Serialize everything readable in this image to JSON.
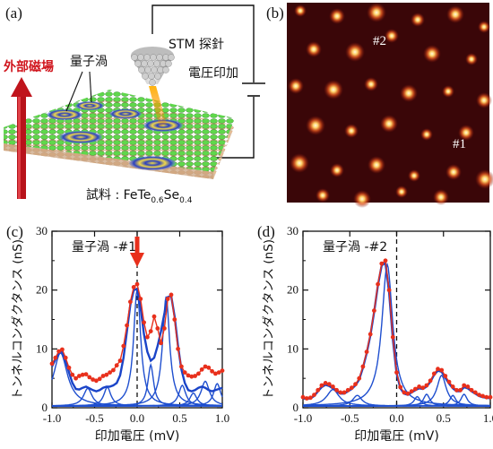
{
  "panels": {
    "a": {
      "label": "(a)",
      "field_label": "外部磁場",
      "vortex_label": "量子渦",
      "tip_label": "STM 探針",
      "voltage_label": "電圧印加",
      "sample_prefix": "試料 : FeTe",
      "sample_sub1": "0.6",
      "sample_mid": "Se",
      "sample_sub2": "0.4"
    },
    "b": {
      "label": "(b)",
      "marker1": "#1",
      "marker2": "#2"
    }
  },
  "colors": {
    "field_arrow": "#c0141c",
    "lattice_top": "#4cc23a",
    "lattice_bottom": "#d8b08a",
    "map_bg": "#3a0608",
    "data_marker": "#e8301c",
    "fit_line": "#1f4fcf"
  },
  "chart_data": [
    {
      "type": "line",
      "panel_label": "(c)",
      "annotation": "量子渦 -#1",
      "xlabel": "印加電圧 (mV)",
      "ylabel": "トンネルコンダクタンス (nS)",
      "xlim": [
        -1.0,
        1.0
      ],
      "ylim": [
        0,
        30
      ],
      "xticks": [
        "-1.0",
        "-0.5",
        "0.0",
        "0.5",
        "1.0"
      ],
      "yticks": [
        "0",
        "10",
        "20",
        "30"
      ],
      "zero_line": 0.0,
      "arrow_at": 0.0,
      "measured": {
        "x": [
          -1.0,
          -0.96,
          -0.92,
          -0.88,
          -0.84,
          -0.8,
          -0.76,
          -0.72,
          -0.68,
          -0.64,
          -0.6,
          -0.56,
          -0.52,
          -0.48,
          -0.44,
          -0.4,
          -0.36,
          -0.32,
          -0.28,
          -0.24,
          -0.2,
          -0.16,
          -0.12,
          -0.08,
          -0.04,
          0.0,
          0.04,
          0.08,
          0.12,
          0.16,
          0.2,
          0.24,
          0.28,
          0.32,
          0.36,
          0.4,
          0.44,
          0.48,
          0.52,
          0.56,
          0.6,
          0.64,
          0.68,
          0.72,
          0.76,
          0.8,
          0.84,
          0.88,
          0.92,
          0.96,
          1.0
        ],
        "y": [
          7.5,
          8.5,
          9.6,
          9.9,
          8.5,
          6.8,
          5.6,
          5.0,
          5.4,
          5.6,
          5.7,
          5.2,
          4.8,
          4.6,
          4.9,
          5.4,
          5.6,
          6.0,
          6.4,
          7.2,
          8.0,
          10.5,
          14.0,
          18.0,
          20.5,
          21.0,
          18.5,
          14.5,
          12.0,
          13.0,
          15.5,
          13.5,
          11.0,
          13.5,
          18.5,
          19.2,
          15.0,
          10.0,
          7.0,
          6.0,
          5.5,
          5.3,
          5.4,
          5.8,
          6.5,
          7.0,
          6.8,
          6.2,
          5.8,
          6.0,
          6.3
        ]
      },
      "fit_total": {
        "x": [
          -1.0,
          -0.96,
          -0.92,
          -0.88,
          -0.84,
          -0.8,
          -0.76,
          -0.72,
          -0.68,
          -0.64,
          -0.6,
          -0.56,
          -0.52,
          -0.48,
          -0.44,
          -0.4,
          -0.36,
          -0.32,
          -0.28,
          -0.24,
          -0.2,
          -0.16,
          -0.12,
          -0.08,
          -0.04,
          0.0,
          0.04,
          0.08,
          0.12,
          0.16,
          0.2,
          0.24,
          0.28,
          0.32,
          0.36,
          0.4,
          0.44,
          0.48,
          0.52,
          0.56,
          0.6,
          0.64,
          0.68,
          0.72,
          0.76,
          0.8,
          0.84,
          0.88,
          0.92,
          0.96,
          1.0
        ],
        "y": [
          7.0,
          8.2,
          9.3,
          9.6,
          8.0,
          6.0,
          4.2,
          3.2,
          3.1,
          3.4,
          3.6,
          3.3,
          3.0,
          2.8,
          3.0,
          3.4,
          3.6,
          3.6,
          3.8,
          4.2,
          5.5,
          8.5,
          13.0,
          17.5,
          20.0,
          20.2,
          17.0,
          12.5,
          9.5,
          8.0,
          8.5,
          10.5,
          13.0,
          16.0,
          18.8,
          19.0,
          15.5,
          10.5,
          6.5,
          4.2,
          3.0,
          2.8,
          3.0,
          3.4,
          3.6,
          3.4,
          3.0,
          2.8,
          3.0,
          3.2,
          3.4
        ]
      },
      "components": [
        {
          "center": -0.9,
          "height": 9.0,
          "width": 0.1
        },
        {
          "center": -0.58,
          "height": 3.0,
          "width": 0.06
        },
        {
          "center": -0.35,
          "height": 3.2,
          "width": 0.05
        },
        {
          "center": 0.0,
          "height": 19.8,
          "width": 0.05
        },
        {
          "center": 0.16,
          "height": 7.0,
          "width": 0.04
        },
        {
          "center": 0.34,
          "height": 18.6,
          "width": 0.05
        },
        {
          "center": 0.53,
          "height": 3.5,
          "width": 0.05
        },
        {
          "center": 0.66,
          "height": 2.2,
          "width": 0.05
        },
        {
          "center": 0.8,
          "height": 4.2,
          "width": 0.06
        },
        {
          "center": 0.94,
          "height": 3.8,
          "width": 0.05
        }
      ]
    },
    {
      "type": "line",
      "panel_label": "(d)",
      "annotation": "量子渦 -#2",
      "xlabel": "印加電圧 (mV)",
      "ylabel": "トンネルコンダクタンス (nS)",
      "xlim": [
        -1.0,
        1.0
      ],
      "ylim": [
        0,
        30
      ],
      "xticks": [
        "-1.0",
        "-0.5",
        "0.0",
        "0.5",
        "1.0"
      ],
      "yticks": [
        "0",
        "10",
        "20",
        "30"
      ],
      "zero_line": 0.0,
      "measured": {
        "x": [
          -1.0,
          -0.96,
          -0.92,
          -0.88,
          -0.84,
          -0.8,
          -0.76,
          -0.72,
          -0.68,
          -0.64,
          -0.6,
          -0.56,
          -0.52,
          -0.48,
          -0.44,
          -0.4,
          -0.36,
          -0.32,
          -0.28,
          -0.24,
          -0.2,
          -0.16,
          -0.12,
          -0.08,
          -0.04,
          0.0,
          0.04,
          0.08,
          0.12,
          0.16,
          0.2,
          0.24,
          0.28,
          0.32,
          0.36,
          0.4,
          0.44,
          0.48,
          0.52,
          0.56,
          0.6,
          0.64,
          0.68,
          0.72,
          0.76,
          0.8,
          0.84,
          0.88,
          0.92,
          0.96,
          1.0
        ],
        "y": [
          1.8,
          1.6,
          1.7,
          2.2,
          3.0,
          3.8,
          4.2,
          4.0,
          3.6,
          3.0,
          2.6,
          2.6,
          3.0,
          3.4,
          4.0,
          5.0,
          7.0,
          9.5,
          12.5,
          16.5,
          21.0,
          24.5,
          25.0,
          20.0,
          12.0,
          6.0,
          3.5,
          2.6,
          2.4,
          2.8,
          3.2,
          3.6,
          3.4,
          3.8,
          4.6,
          5.8,
          6.6,
          6.4,
          5.4,
          4.4,
          3.6,
          3.0,
          3.0,
          3.8,
          3.6,
          3.0,
          2.6,
          2.2,
          2.0,
          1.8,
          1.8
        ]
      },
      "fit_total": {
        "x": [
          -1.0,
          -0.96,
          -0.92,
          -0.88,
          -0.84,
          -0.8,
          -0.76,
          -0.72,
          -0.68,
          -0.64,
          -0.6,
          -0.56,
          -0.52,
          -0.48,
          -0.44,
          -0.4,
          -0.36,
          -0.32,
          -0.28,
          -0.24,
          -0.2,
          -0.16,
          -0.12,
          -0.08,
          -0.04,
          0.0,
          0.04,
          0.08,
          0.12,
          0.16,
          0.2,
          0.24,
          0.28,
          0.32,
          0.36,
          0.4,
          0.44,
          0.48,
          0.52,
          0.56,
          0.6,
          0.64,
          0.68,
          0.72,
          0.76,
          0.8,
          0.84,
          0.88,
          0.92,
          0.96,
          1.0
        ],
        "y": [
          1.6,
          1.5,
          1.6,
          2.0,
          2.8,
          3.5,
          3.9,
          3.7,
          3.3,
          2.8,
          2.4,
          2.4,
          2.8,
          3.2,
          3.8,
          4.8,
          6.8,
          9.3,
          12.3,
          16.3,
          20.8,
          24.2,
          24.6,
          19.6,
          11.6,
          5.8,
          3.3,
          2.4,
          2.2,
          2.6,
          3.0,
          3.3,
          3.2,
          3.6,
          4.4,
          5.6,
          6.3,
          6.1,
          5.1,
          4.1,
          3.3,
          2.8,
          2.8,
          3.5,
          3.3,
          2.8,
          2.4,
          2.0,
          1.8,
          1.7,
          1.6
        ]
      },
      "components": [
        {
          "center": -0.68,
          "height": 2.8,
          "width": 0.08
        },
        {
          "center": -0.42,
          "height": 1.8,
          "width": 0.06
        },
        {
          "center": -0.1,
          "height": 24.0,
          "width": 0.07
        },
        {
          "center": 0.22,
          "height": 1.6,
          "width": 0.04
        },
        {
          "center": 0.32,
          "height": 2.0,
          "width": 0.04
        },
        {
          "center": 0.48,
          "height": 5.2,
          "width": 0.06
        },
        {
          "center": 0.6,
          "height": 1.8,
          "width": 0.04
        },
        {
          "center": 0.72,
          "height": 2.0,
          "width": 0.04
        }
      ]
    }
  ]
}
